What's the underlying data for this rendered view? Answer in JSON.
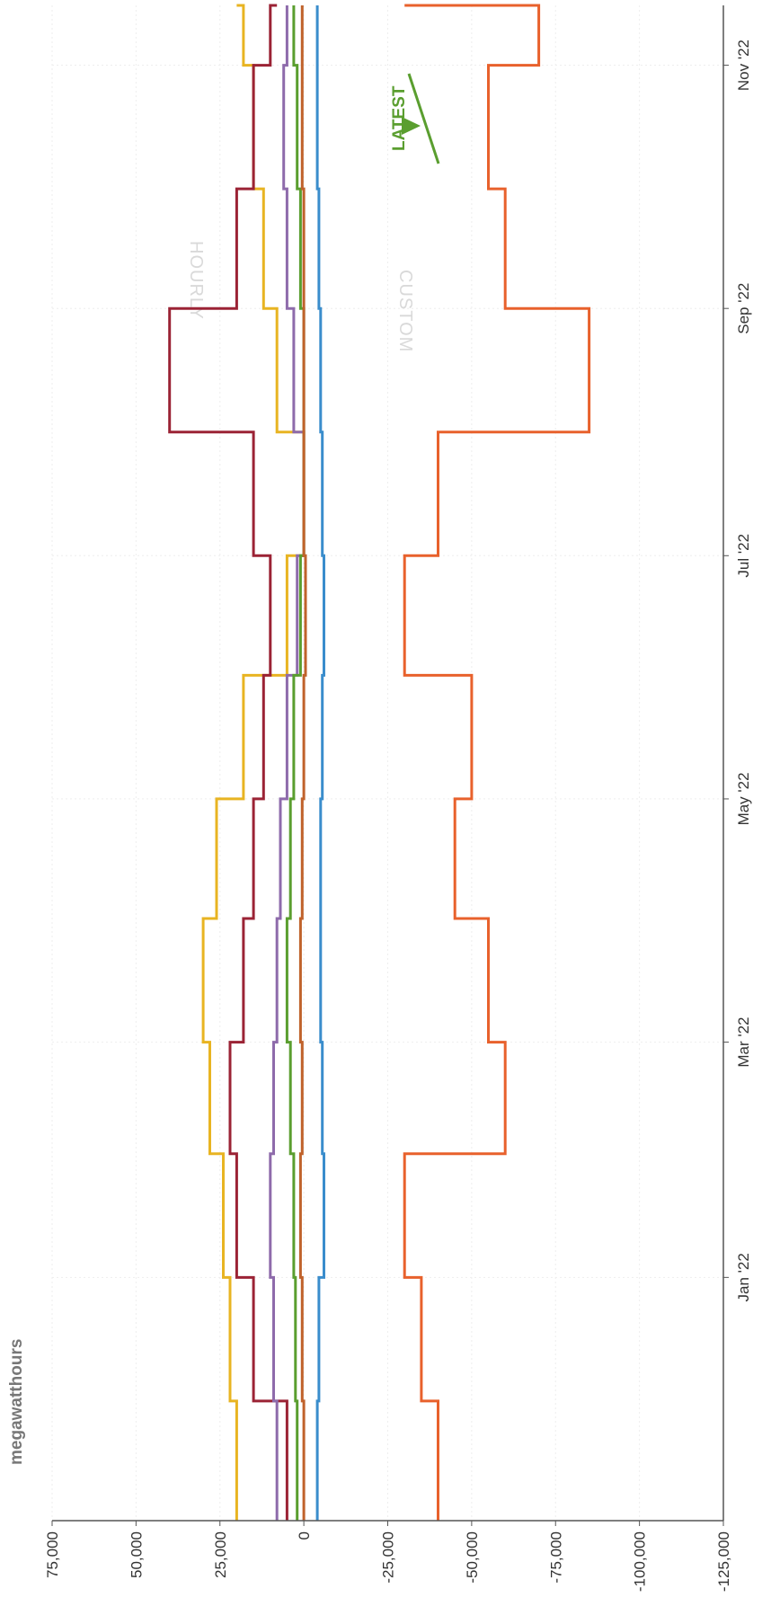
{
  "chart_data": {
    "type": "line",
    "orientation": "rotated-90-clockwise",
    "ylabel": "megawatthours",
    "ylim": [
      -125000,
      75000
    ],
    "y_ticks": [
      75000,
      50000,
      25000,
      0,
      -25000,
      -50000,
      -75000,
      -100000,
      -125000
    ],
    "y_tick_labels": [
      "75,000",
      "50,000",
      "25,000",
      "0",
      "-25,000",
      "-50,000",
      "-75,000",
      "-100,000",
      "-125,000"
    ],
    "x_ticks": [
      "2022-01-01",
      "2022-03-01",
      "2022-05-01",
      "2022-07-01",
      "2022-09-01",
      "2022-11-01"
    ],
    "x_tick_labels": [
      "Jan '22",
      "Mar '22",
      "May '22",
      "Jul '22",
      "Sep '22",
      "Nov '22"
    ],
    "xlim": [
      "2021-11-01",
      "2022-11-16"
    ],
    "grid": true,
    "step": true,
    "watermarks": [
      "HOURLY",
      "CUSTOM"
    ],
    "annotation": "LATEST",
    "annotation_color": "#5a9e2f",
    "colors": {
      "series1": "#e8b422",
      "series2": "#9b2335",
      "series3": "#8e6bab",
      "series4": "#5a9e2f",
      "series5": "#c0622b",
      "series6": "#3a8dcc",
      "series7": "#e8612c"
    },
    "series": [
      {
        "x": [
          "2021-11-01",
          "2021-12-01",
          "2022-01-01",
          "2022-02-01",
          "2022-03-01",
          "2022-04-01",
          "2022-05-01",
          "2022-06-01",
          "2022-07-01",
          "2022-08-01",
          "2022-09-01",
          "2022-10-01",
          "2022-11-01",
          "2022-11-16"
        ],
        "values": [
          20000,
          22000,
          24000,
          28000,
          30000,
          26000,
          18000,
          5000,
          0,
          8000,
          12000,
          15000,
          18000,
          20000
        ]
      },
      {
        "x": [
          "2021-11-01",
          "2021-12-01",
          "2022-01-01",
          "2022-02-01",
          "2022-03-01",
          "2022-04-01",
          "2022-05-01",
          "2022-06-01",
          "2022-07-01",
          "2022-08-01",
          "2022-09-01",
          "2022-10-01",
          "2022-11-01",
          "2022-11-16"
        ],
        "values": [
          5000,
          15000,
          20000,
          22000,
          18000,
          15000,
          12000,
          10000,
          15000,
          40000,
          20000,
          15000,
          10000,
          8000
        ]
      },
      {
        "x": [
          "2021-11-01",
          "2021-12-01",
          "2022-01-01",
          "2022-02-01",
          "2022-03-01",
          "2022-04-01",
          "2022-05-01",
          "2022-06-01",
          "2022-07-01",
          "2022-08-01",
          "2022-09-01",
          "2022-10-01",
          "2022-11-01",
          "2022-11-16"
        ],
        "values": [
          8000,
          9000,
          10000,
          9000,
          8000,
          7000,
          5000,
          2000,
          0,
          3000,
          5000,
          6000,
          5000,
          5000
        ]
      },
      {
        "x": [
          "2021-11-01",
          "2021-12-01",
          "2022-01-01",
          "2022-02-01",
          "2022-03-01",
          "2022-04-01",
          "2022-05-01",
          "2022-06-01",
          "2022-07-01",
          "2022-08-01",
          "2022-09-01",
          "2022-10-01",
          "2022-11-01",
          "2022-11-16"
        ],
        "values": [
          2000,
          2500,
          3000,
          4000,
          5000,
          4000,
          3000,
          1000,
          0,
          0,
          1000,
          2000,
          3000,
          3000
        ]
      },
      {
        "x": [
          "2021-11-01",
          "2021-12-01",
          "2022-01-01",
          "2022-02-01",
          "2022-03-01",
          "2022-04-01",
          "2022-05-01",
          "2022-06-01",
          "2022-07-01",
          "2022-08-01",
          "2022-09-01",
          "2022-10-01",
          "2022-11-01",
          "2022-11-16"
        ],
        "values": [
          0,
          500,
          1000,
          500,
          1000,
          500,
          0,
          -500,
          0,
          0,
          0,
          500,
          500,
          500
        ]
      },
      {
        "x": [
          "2021-11-01",
          "2021-12-01",
          "2022-01-01",
          "2022-02-01",
          "2022-03-01",
          "2022-04-01",
          "2022-05-01",
          "2022-06-01",
          "2022-07-01",
          "2022-08-01",
          "2022-09-01",
          "2022-10-01",
          "2022-11-01",
          "2022-11-16"
        ],
        "values": [
          -4000,
          -4500,
          -6000,
          -5500,
          -5000,
          -5000,
          -5500,
          -6000,
          -5500,
          -5000,
          -4500,
          -4000,
          -4000,
          -4000
        ]
      },
      {
        "x": [
          "2021-11-01",
          "2021-12-01",
          "2022-01-01",
          "2022-02-01",
          "2022-03-01",
          "2022-04-01",
          "2022-05-01",
          "2022-06-01",
          "2022-07-01",
          "2022-08-01",
          "2022-09-01",
          "2022-10-01",
          "2022-11-01",
          "2022-11-16"
        ],
        "values": [
          -40000,
          -35000,
          -30000,
          -60000,
          -55000,
          -45000,
          -50000,
          -30000,
          -40000,
          -85000,
          -60000,
          -55000,
          -70000,
          -30000
        ]
      }
    ]
  }
}
